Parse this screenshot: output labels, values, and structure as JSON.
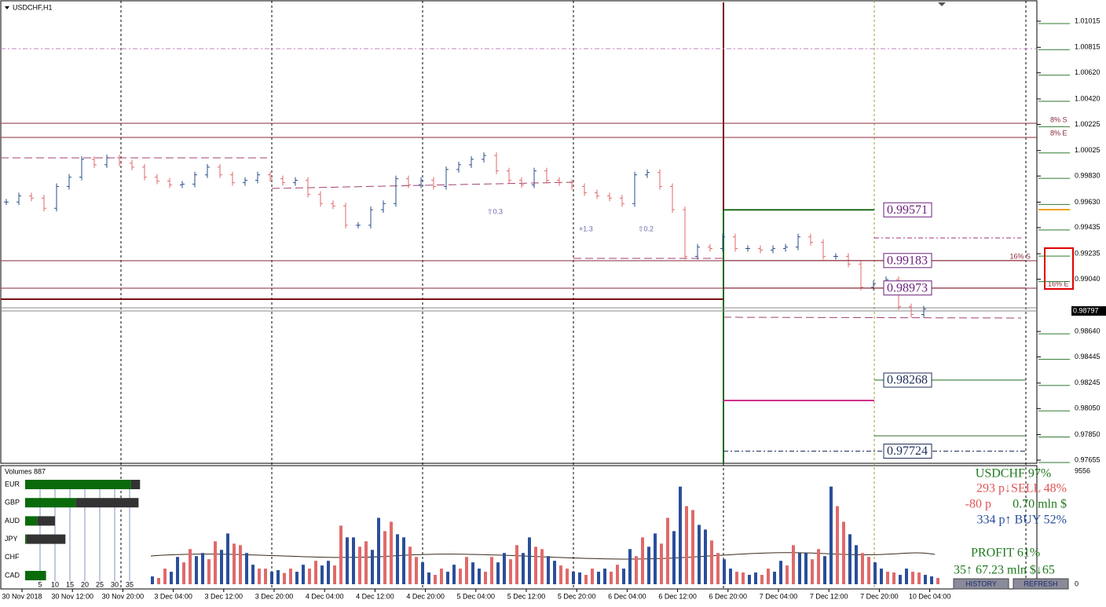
{
  "window_title": "USDCHF,H1",
  "price_axis": {
    "ticks": [
      {
        "value": 1.01015,
        "label": "1.01015"
      },
      {
        "value": 1.00815,
        "label": "1.00815"
      },
      {
        "value": 1.0062,
        "label": "1.00620"
      },
      {
        "value": 1.0042,
        "label": "1.00420"
      },
      {
        "value": 1.00225,
        "label": "1.00225"
      },
      {
        "value": 1.00025,
        "label": "1.00025"
      },
      {
        "value": 0.9983,
        "label": "0.99830"
      },
      {
        "value": 0.9963,
        "label": "0.99630"
      },
      {
        "value": 0.99435,
        "label": "0.99435"
      },
      {
        "value": 0.99235,
        "label": "0.99235"
      },
      {
        "value": 0.9904,
        "label": "0.99040"
      },
      {
        "value": 0.9864,
        "label": "0.98640"
      },
      {
        "value": 0.98445,
        "label": "0.98445"
      },
      {
        "value": 0.98245,
        "label": "0.98245"
      },
      {
        "value": 0.9805,
        "label": "0.98050"
      },
      {
        "value": 0.9785,
        "label": "0.97850"
      },
      {
        "value": 0.97655,
        "label": "0.97655"
      }
    ],
    "current": {
      "value": 0.98797,
      "label": "0.98797"
    }
  },
  "time_axis": {
    "labels": [
      "30 Nov 2018",
      "30 Nov 12:00",
      "30 Nov 20:00",
      "3 Dec 04:00",
      "3 Dec 12:00",
      "3 Dec 20:00",
      "4 Dec 04:00",
      "4 Dec 12:00",
      "4 Dec 20:00",
      "5 Dec 04:00",
      "5 Dec 12:00",
      "5 Dec 20:00",
      "6 Dec 04:00",
      "6 Dec 12:00",
      "6 Dec 20:00",
      "7 Dec 04:00",
      "7 Dec 12:00",
      "7 Dec 20:00",
      "10 Dec 04:00"
    ]
  },
  "levels": [
    {
      "value": 0.99571,
      "label": "0.99571",
      "color": "#6b1f7a"
    },
    {
      "value": 0.99183,
      "label": "0.99183",
      "color": "#6b1f7a"
    },
    {
      "value": 0.98973,
      "label": "0.98973",
      "color": "#6b1f7a"
    },
    {
      "value": 0.98268,
      "label": "0.98268",
      "color": "#1f2f5a"
    },
    {
      "value": 0.97724,
      "label": "0.97724",
      "color": "#1f2f5a"
    }
  ],
  "zone_labels": [
    "8% S",
    "8% E",
    "16% S",
    "16% E"
  ],
  "annotations": [
    "⇧0.3",
    "+1.3",
    "⇧0.2"
  ],
  "prices": [
    0.99631,
    0.99678,
    0.99661,
    0.99583,
    0.9975,
    0.99821,
    0.99958,
    0.99916,
    0.9997,
    0.99928,
    0.99898,
    0.99821,
    0.99791,
    0.99762,
    0.99768,
    0.99839,
    0.99898,
    0.99839,
    0.99779,
    0.99797,
    0.99839,
    0.99809,
    0.99779,
    0.99797,
    0.9969,
    0.99619,
    0.99601,
    0.99453,
    0.99453,
    0.99572,
    0.99619,
    0.99809,
    0.99762,
    0.99797,
    0.9975,
    0.9988,
    0.99916,
    0.99958,
    0.99987,
    0.99869,
    0.99797,
    0.99762,
    0.99869,
    0.99797,
    0.99779,
    0.9975,
    0.99702,
    0.99678,
    0.99661,
    0.99619,
    0.99839,
    0.99857,
    0.9975,
    0.99572,
    0.99215,
    0.99286,
    0.99275,
    0.99364,
    0.99275,
    0.99275,
    0.99263,
    0.99275,
    0.99286,
    0.99364,
    0.99322,
    0.99215,
    0.99215,
    0.99156,
    0.98978,
    0.99007,
    0.99037,
    0.98829,
    0.9877,
    0.98811
  ],
  "volume_panel": {
    "title": "Volumes 887",
    "yticks": [
      0,
      9556
    ],
    "values": [
      660,
      1320,
      2310,
      2970,
      2640,
      3630,
      4290,
      3300,
      1650,
      1320,
      1190,
      1320,
      1650,
      1980,
      1980,
      4950,
      3960,
      3630,
      5610,
      5280,
      3960,
      2310,
      990,
      1320,
      1650,
      2310,
      1320,
      2310,
      2640,
      3300,
      3960,
      2970,
      1980,
      1320,
      990,
      1320,
      1320,
      1650,
      2970,
      3960,
      4290,
      5610,
      8250,
      6270,
      4620,
      2640,
      1320,
      990,
      990,
      1320,
      1980,
      3300,
      2640,
      2970,
      8250,
      5280,
      3300,
      2310,
      1320,
      990,
      1320,
      990,
      660
    ]
  },
  "strength": {
    "scale": [
      5,
      10,
      15,
      20,
      25,
      30,
      35
    ],
    "rows": [
      {
        "name": "EUR",
        "strong": 35.5,
        "weak": 3
      },
      {
        "name": "GBP",
        "strong": 17,
        "weak": 21
      },
      {
        "name": "AUD",
        "strong": 4,
        "weak": 6
      },
      {
        "name": "JPY",
        "strong": 0.5,
        "weak": 13
      },
      {
        "name": "CHF",
        "strong": 0,
        "weak": 0
      },
      {
        "name": "CAD",
        "strong": 7,
        "weak": 0
      }
    ]
  },
  "summary": {
    "lines": [
      {
        "text": "USDCHF 97%",
        "color": "#1e7a1e"
      },
      {
        "text": "293 p↓SELL 48%",
        "color": "#e05555"
      },
      {
        "text": "-80 p",
        "color": "#e05555"
      },
      {
        "text": "0.70 mln $",
        "color": "#1e7a1e"
      },
      {
        "text": "334 p↑ BUY 52%",
        "color": "#2a4f9a"
      },
      {
        "text": "PROFIT 61%",
        "color": "#1e7a1e"
      },
      {
        "text": "35↑ 67.23 mln $↓65",
        "color": "#1e7a1e"
      }
    ],
    "buttons": [
      "HISTORY",
      "REFRESH"
    ]
  }
}
